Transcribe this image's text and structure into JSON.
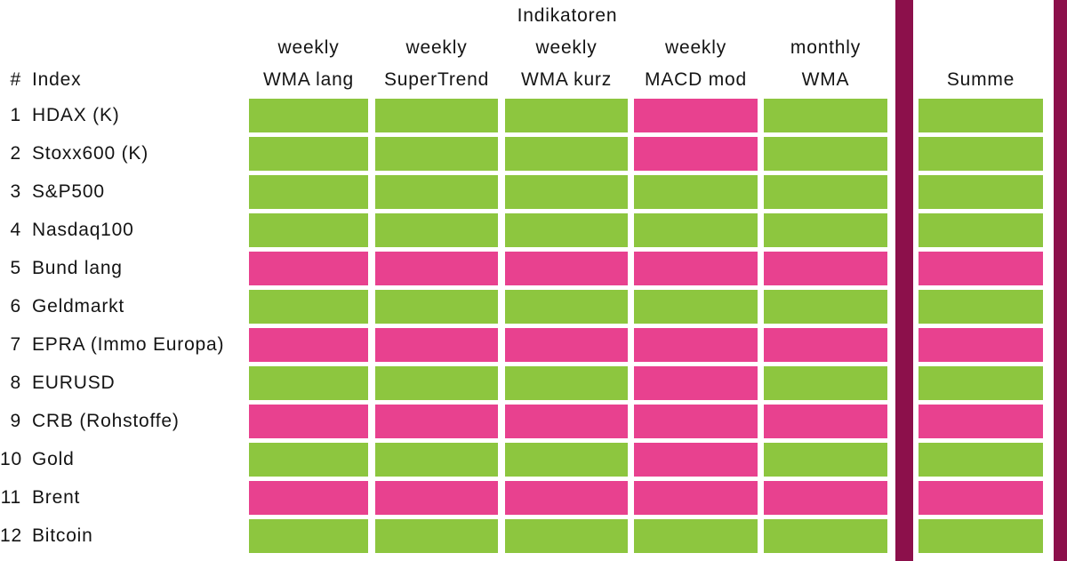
{
  "title": "Indikatoren",
  "index_header": {
    "number_symbol": "#",
    "label": "Index"
  },
  "summe_label": "Summe",
  "colors": {
    "green": "#8DC63F",
    "pink": "#E8418F",
    "divider": "#8C104B",
    "text": "#141414",
    "background": "#FFFFFF"
  },
  "chart_data": {
    "type": "heatmap",
    "title": "Indikatoren",
    "column_groups": [
      {
        "period": "weekly",
        "indicator": "WMA lang"
      },
      {
        "period": "weekly",
        "indicator": "SuperTrend"
      },
      {
        "period": "weekly",
        "indicator": "WMA kurz"
      },
      {
        "period": "weekly",
        "indicator": "MACD mod"
      },
      {
        "period": "monthly",
        "indicator": "WMA"
      }
    ],
    "summary_column": "Summe",
    "legend": {
      "green": "#8DC63F",
      "pink": "#E8418F"
    },
    "rows": [
      {
        "num": "1",
        "label": "HDAX (K)",
        "cells": [
          "green",
          "green",
          "green",
          "pink",
          "green"
        ],
        "summe": "green"
      },
      {
        "num": "2",
        "label": "Stoxx600 (K)",
        "cells": [
          "green",
          "green",
          "green",
          "pink",
          "green"
        ],
        "summe": "green"
      },
      {
        "num": "3",
        "label": "S&P500",
        "cells": [
          "green",
          "green",
          "green",
          "green",
          "green"
        ],
        "summe": "green"
      },
      {
        "num": "4",
        "label": "Nasdaq100",
        "cells": [
          "green",
          "green",
          "green",
          "green",
          "green"
        ],
        "summe": "green"
      },
      {
        "num": "5",
        "label": "Bund lang",
        "cells": [
          "pink",
          "pink",
          "pink",
          "pink",
          "pink"
        ],
        "summe": "pink"
      },
      {
        "num": "6",
        "label": "Geldmarkt",
        "cells": [
          "green",
          "green",
          "green",
          "green",
          "green"
        ],
        "summe": "green"
      },
      {
        "num": "7",
        "label": "EPRA (Immo Europa)",
        "cells": [
          "pink",
          "pink",
          "pink",
          "pink",
          "pink"
        ],
        "summe": "pink"
      },
      {
        "num": "8",
        "label": "EURUSD",
        "cells": [
          "green",
          "green",
          "green",
          "pink",
          "green"
        ],
        "summe": "green"
      },
      {
        "num": "9",
        "label": "CRB (Rohstoffe)",
        "cells": [
          "pink",
          "pink",
          "pink",
          "pink",
          "pink"
        ],
        "summe": "pink"
      },
      {
        "num": "10",
        "label": "Gold",
        "cells": [
          "green",
          "green",
          "green",
          "pink",
          "green"
        ],
        "summe": "green"
      },
      {
        "num": "11",
        "label": "Brent",
        "cells": [
          "pink",
          "pink",
          "pink",
          "pink",
          "pink"
        ],
        "summe": "pink"
      },
      {
        "num": "12",
        "label": "Bitcoin",
        "cells": [
          "green",
          "green",
          "green",
          "green",
          "green"
        ],
        "summe": "green"
      }
    ]
  }
}
